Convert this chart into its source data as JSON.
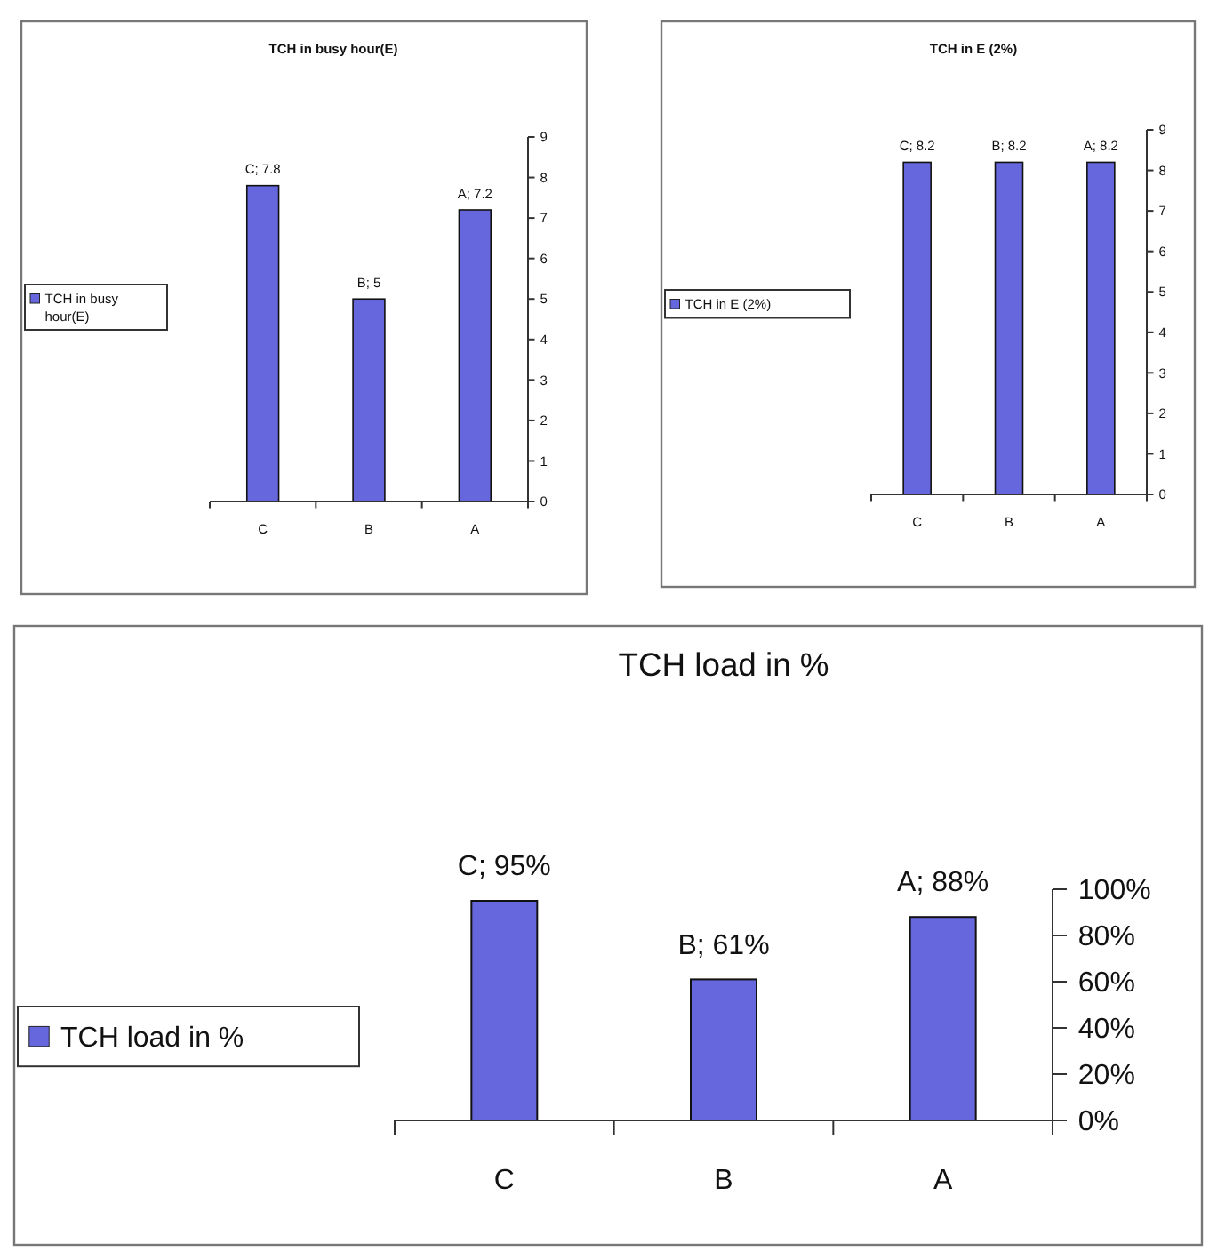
{
  "chart_data": [
    {
      "type": "bar",
      "title": "TCH in busy hour(E)",
      "categories": [
        "C",
        "B",
        "A"
      ],
      "series": [
        {
          "name": "TCH in busy hour(E)",
          "color": "#6666dd",
          "values": [
            7.8,
            5,
            7.2
          ],
          "value_labels": [
            "C; 7.8",
            "B; 5",
            "A; 7.2"
          ]
        }
      ],
      "ylim": [
        0,
        9
      ],
      "yticks": [
        0,
        1,
        2,
        3,
        4,
        5,
        6,
        7,
        8,
        9
      ],
      "legend": "left"
    },
    {
      "type": "bar",
      "title": "TCH in E (2%)",
      "categories": [
        "C",
        "B",
        "A"
      ],
      "series": [
        {
          "name": "TCH in E (2%)",
          "color": "#6666dd",
          "values": [
            8.2,
            8.2,
            8.2
          ],
          "value_labels": [
            "C; 8.2",
            "B; 8.2",
            "A; 8.2"
          ]
        }
      ],
      "ylim": [
        0,
        9
      ],
      "yticks": [
        0,
        1,
        2,
        3,
        4,
        5,
        6,
        7,
        8,
        9
      ],
      "legend": "left"
    },
    {
      "type": "bar",
      "title": "TCH load in %",
      "categories": [
        "C",
        "B",
        "A"
      ],
      "series": [
        {
          "name": "TCH load in %",
          "color": "#6666dd",
          "values": [
            95,
            61,
            88
          ],
          "value_labels": [
            "C; 95%",
            "B; 61%",
            "A; 88%"
          ]
        }
      ],
      "ylim": [
        0,
        100
      ],
      "yticks": [
        {
          "value": 0,
          "label": "0%"
        },
        {
          "value": 20,
          "label": "20%"
        },
        {
          "value": 40,
          "label": "40%"
        },
        {
          "value": 60,
          "label": "60%"
        },
        {
          "value": 80,
          "label": "80%"
        },
        {
          "value": 100,
          "label": "100%"
        }
      ],
      "legend": "left"
    }
  ]
}
